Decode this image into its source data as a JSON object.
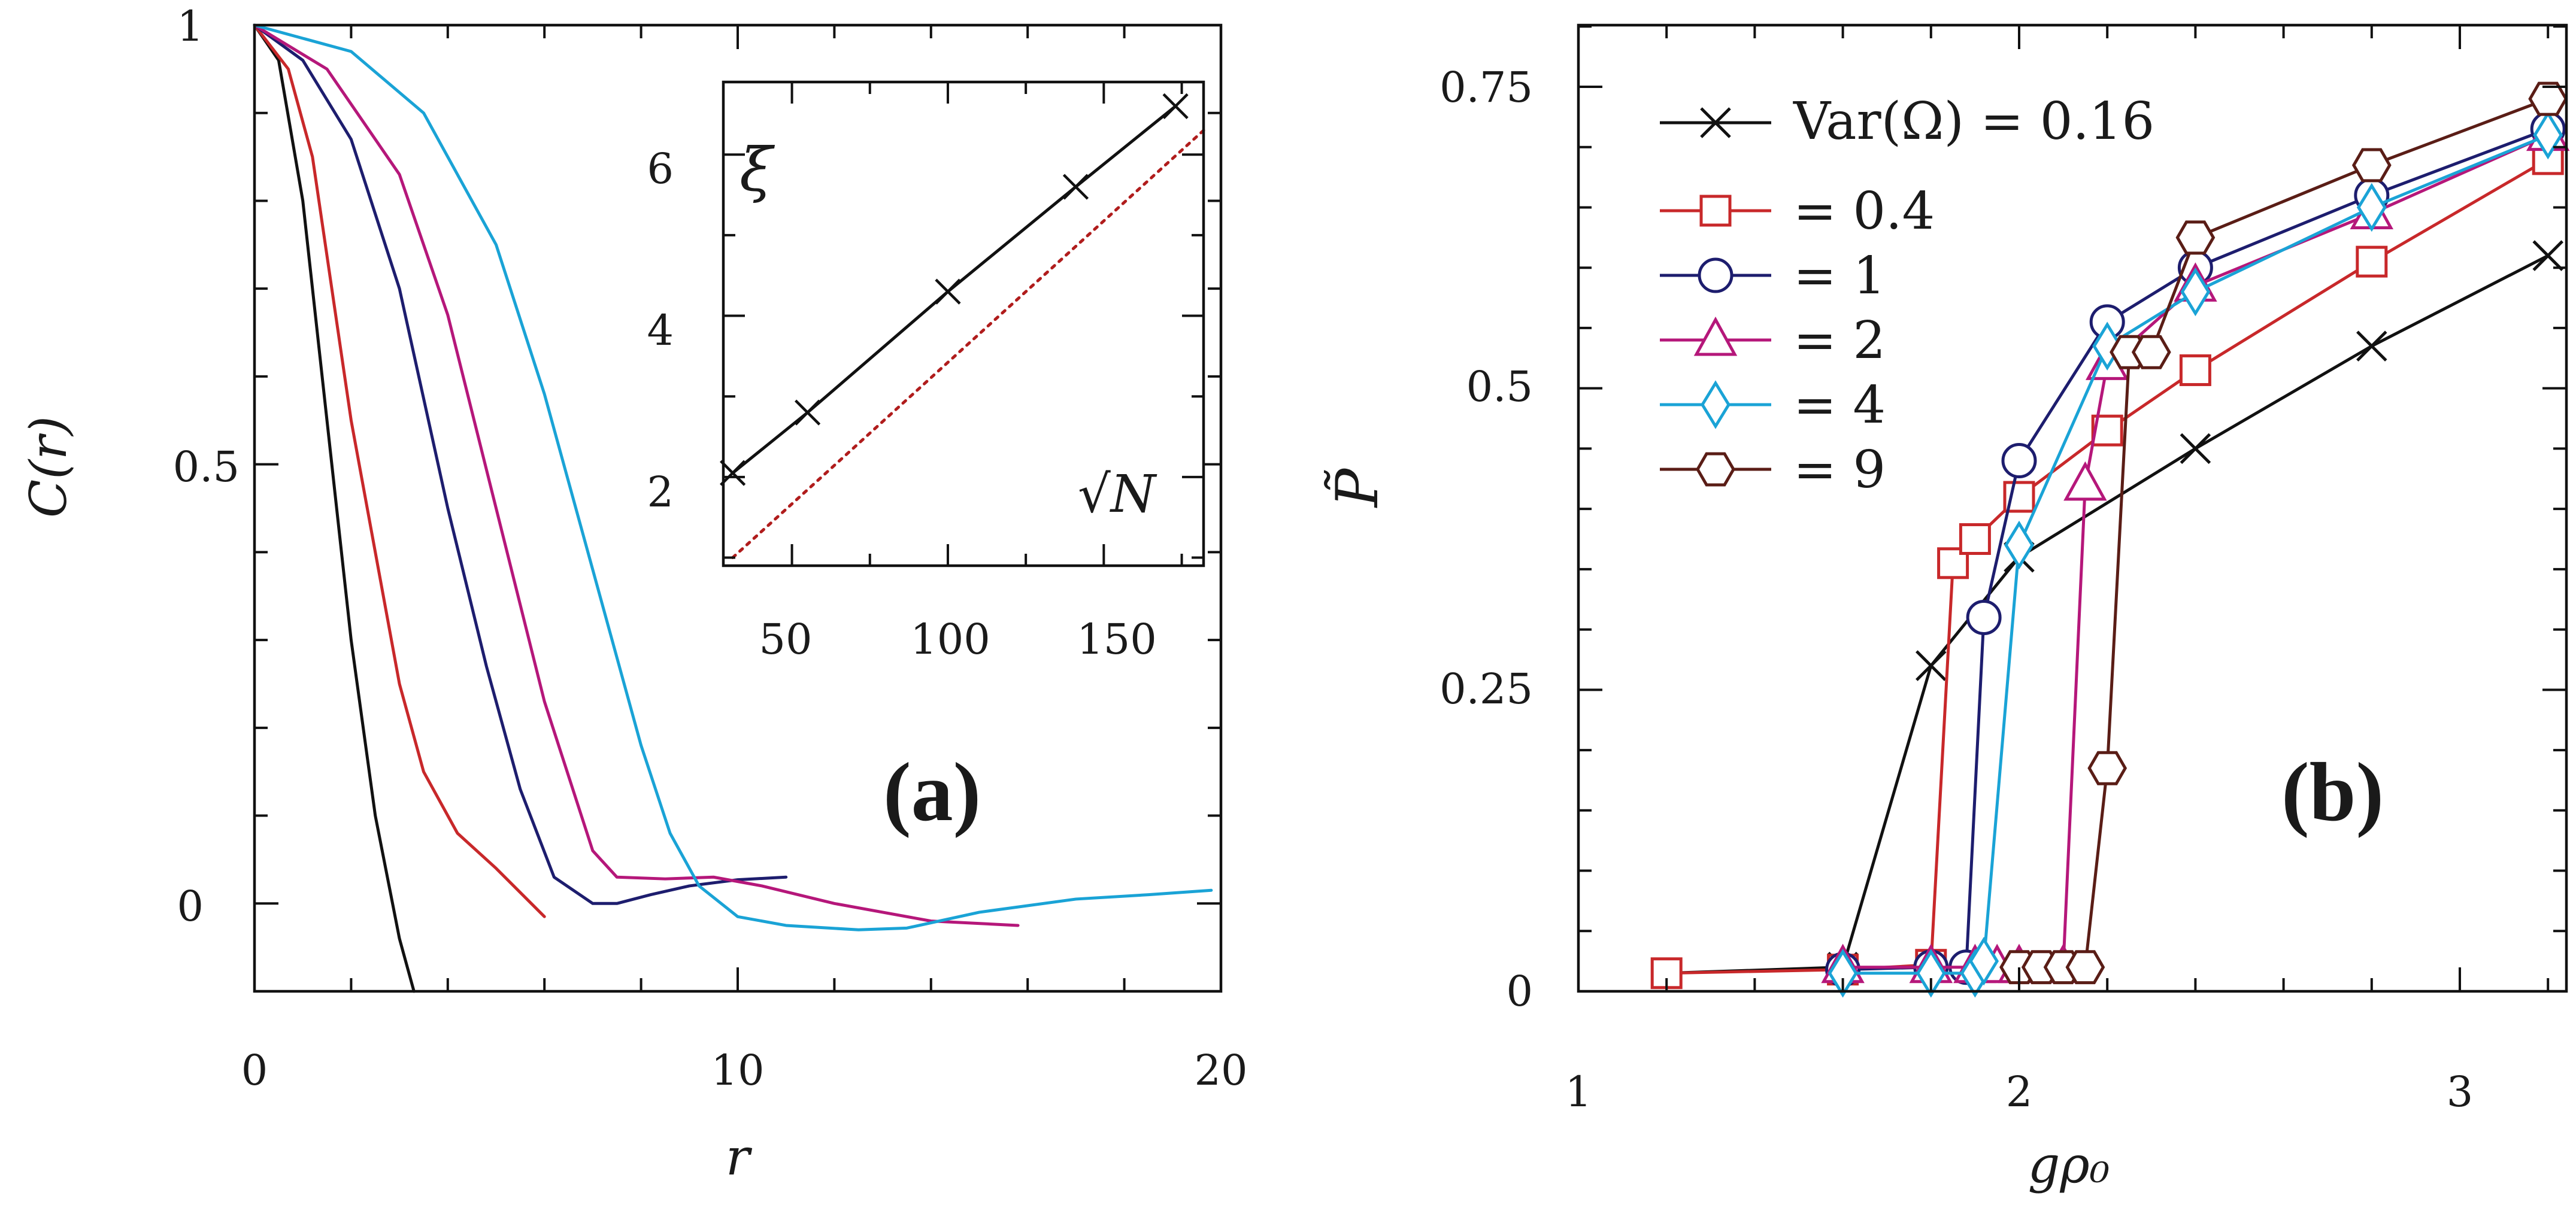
{
  "colors": {
    "black": "#111111",
    "red": "#c8282a",
    "navy": "#1d1d6e",
    "magenta": "#b5177a",
    "cyan": "#1aa3d6",
    "brown": "#5a1d16",
    "dashed_red": "#b01c1c"
  },
  "chart_data": [
    {
      "panel": "a",
      "type": "line",
      "panel_label": "(a)",
      "xlabel": "r",
      "ylabel": "C(r)",
      "xlim": [
        0,
        20
      ],
      "ylim": [
        -0.1,
        1
      ],
      "xticks": [
        0,
        10,
        20
      ],
      "yticks": [
        0,
        0.5,
        1
      ],
      "yticklabels": [
        "0",
        "0.5",
        "1"
      ],
      "series": [
        {
          "name": "black",
          "color": "#111111",
          "x": [
            0,
            0.5,
            1.0,
            1.5,
            2.0,
            2.5,
            3.0,
            3.3
          ],
          "y": [
            1.0,
            0.96,
            0.8,
            0.55,
            0.3,
            0.1,
            -0.04,
            -0.1
          ]
        },
        {
          "name": "red",
          "color": "#c8282a",
          "x": [
            0,
            0.7,
            1.2,
            1.6,
            2.0,
            2.5,
            3.0,
            3.5,
            4.2,
            5.0,
            6.0
          ],
          "y": [
            1.0,
            0.95,
            0.85,
            0.7,
            0.55,
            0.4,
            0.25,
            0.15,
            0.08,
            0.04,
            -0.015
          ]
        },
        {
          "name": "navy",
          "color": "#1d1d6e",
          "x": [
            0,
            1.0,
            2.0,
            3.0,
            4.0,
            4.8,
            5.5,
            6.2,
            7.0,
            7.5,
            8.2,
            9.0,
            10.0,
            11.0
          ],
          "y": [
            1.0,
            0.96,
            0.87,
            0.7,
            0.45,
            0.27,
            0.13,
            0.03,
            0.0,
            0.0,
            0.01,
            0.02,
            0.027,
            0.03
          ]
        },
        {
          "name": "magenta",
          "color": "#b5177a",
          "x": [
            0,
            1.5,
            3.0,
            4.0,
            5.0,
            6.0,
            7.0,
            7.5,
            8.5,
            9.5,
            10.5,
            12.0,
            14.0,
            15.8
          ],
          "y": [
            1.0,
            0.95,
            0.83,
            0.67,
            0.45,
            0.23,
            0.06,
            0.03,
            0.028,
            0.03,
            0.02,
            0.0,
            -0.02,
            -0.025
          ]
        },
        {
          "name": "cyan",
          "color": "#1aa3d6",
          "x": [
            0,
            2.0,
            3.5,
            5.0,
            6.0,
            7.0,
            8.0,
            8.6,
            9.2,
            10.0,
            11.0,
            12.5,
            13.5,
            15.0,
            17.0,
            18.5,
            19.8
          ],
          "y": [
            1.0,
            0.97,
            0.9,
            0.75,
            0.58,
            0.38,
            0.18,
            0.08,
            0.02,
            -0.015,
            -0.025,
            -0.03,
            -0.028,
            -0.01,
            0.005,
            0.01,
            0.015
          ]
        }
      ],
      "inset": {
        "type": "line",
        "ylabel": "ξ",
        "xlabel": "√N",
        "xlim": [
          28,
          182
        ],
        "ylim": [
          0.9,
          6.9
        ],
        "xticks": [
          50,
          100,
          150
        ],
        "yticks": [
          2,
          4,
          6
        ],
        "x": [
          31,
          55,
          100,
          141,
          173
        ],
        "y": [
          2.05,
          2.8,
          4.3,
          5.6,
          6.6
        ],
        "reference_line": {
          "style": "dotted",
          "color": "#b01c1c",
          "x": [
            31,
            182
          ],
          "y": [
            1.0,
            6.3
          ]
        }
      }
    },
    {
      "panel": "b",
      "type": "line",
      "panel_label": "(b)",
      "xlabel": "gρ₀",
      "ylabel": "P̃",
      "xlim": [
        1,
        3.25
      ],
      "ylim": [
        0,
        0.8
      ],
      "xticks": [
        1,
        2,
        3
      ],
      "yticks": [
        0,
        0.25,
        0.5,
        0.75
      ],
      "yticklabels": [
        "0",
        "0.25",
        "0.5",
        "0.75"
      ],
      "legend_position": "top-left",
      "series": [
        {
          "name": "Var(Ω) = 0.16",
          "marker": "x",
          "color": "#111111",
          "x": [
            1.2,
            1.6,
            1.8,
            2.0,
            2.4,
            2.8,
            3.2
          ],
          "y": [
            0.015,
            0.02,
            0.27,
            0.36,
            0.45,
            0.535,
            0.61
          ]
        },
        {
          "name": "= 0.4",
          "marker": "square",
          "color": "#c8282a",
          "x": [
            1.2,
            1.6,
            1.8,
            1.85,
            1.9,
            2.0,
            2.2,
            2.4,
            2.8,
            3.2
          ],
          "y": [
            0.015,
            0.018,
            0.022,
            0.355,
            0.375,
            0.41,
            0.465,
            0.515,
            0.605,
            0.69
          ]
        },
        {
          "name": "= 1",
          "marker": "circle",
          "color": "#1d1d6e",
          "x": [
            1.6,
            1.8,
            1.88,
            1.92,
            2.0,
            2.2,
            2.4,
            2.8,
            3.2
          ],
          "y": [
            0.018,
            0.02,
            0.02,
            0.31,
            0.44,
            0.555,
            0.6,
            0.66,
            0.715
          ]
        },
        {
          "name": "= 2",
          "marker": "triangle",
          "color": "#b5177a",
          "x": [
            1.6,
            1.8,
            1.9,
            1.95,
            2.0,
            2.1,
            2.15,
            2.2,
            2.4,
            2.8,
            3.2
          ],
          "y": [
            0.02,
            0.02,
            0.02,
            0.02,
            0.02,
            0.02,
            0.42,
            0.52,
            0.585,
            0.645,
            0.71
          ]
        },
        {
          "name": "= 4",
          "marker": "diamond",
          "color": "#1aa3d6",
          "x": [
            1.6,
            1.8,
            1.9,
            1.92,
            2.0,
            2.2,
            2.4,
            2.8,
            3.2
          ],
          "y": [
            0.015,
            0.015,
            0.015,
            0.025,
            0.37,
            0.535,
            0.58,
            0.65,
            0.71
          ]
        },
        {
          "name": "= 9",
          "marker": "hexagon",
          "color": "#5a1d16",
          "x": [
            2.0,
            2.05,
            2.1,
            2.15,
            2.2,
            2.25,
            2.3,
            2.4,
            2.8,
            3.2
          ],
          "y": [
            0.02,
            0.02,
            0.02,
            0.02,
            0.185,
            0.53,
            0.53,
            0.625,
            0.685,
            0.74
          ]
        }
      ]
    }
  ]
}
